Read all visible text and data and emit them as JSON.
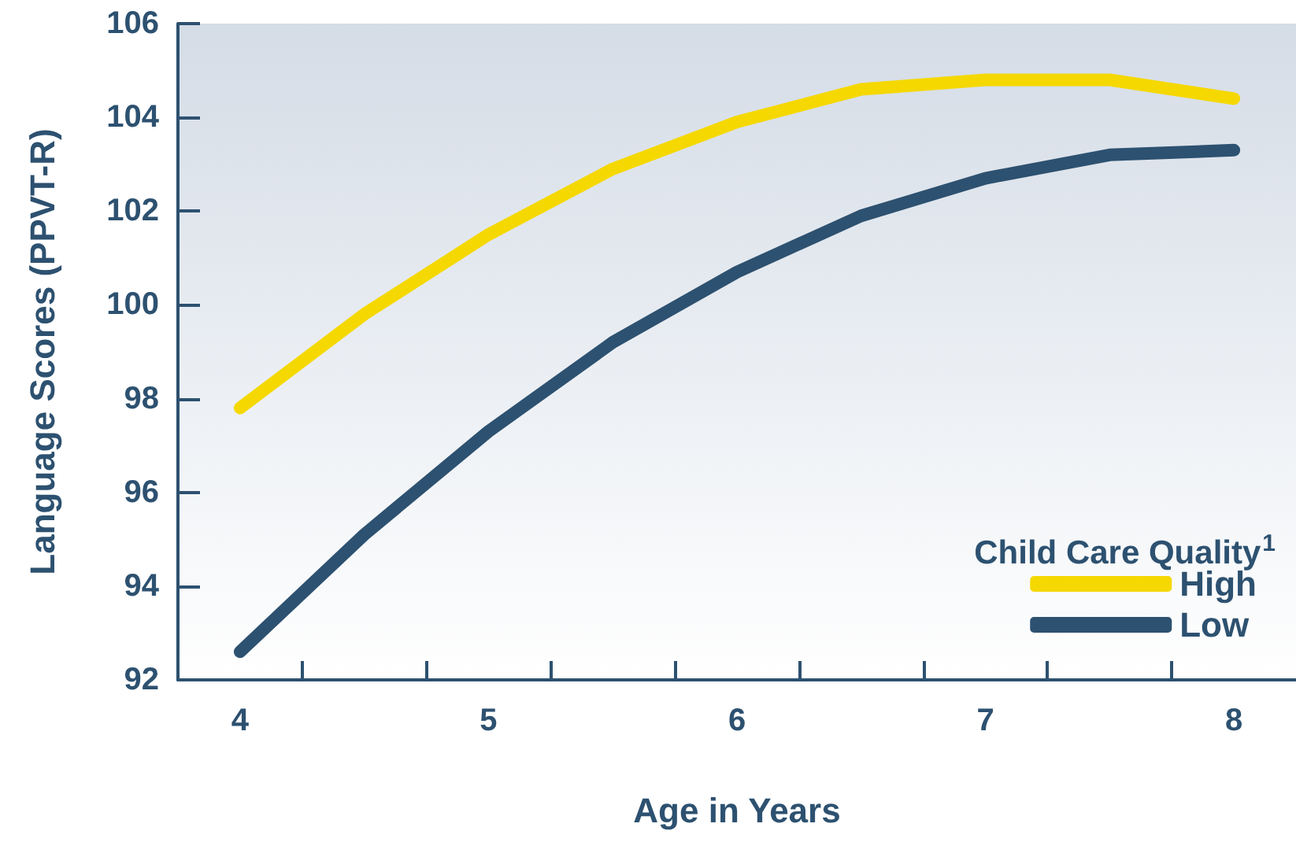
{
  "chart_data": {
    "type": "line",
    "xlabel": "Age in Years",
    "ylabel": "Language Scores (PPVT-R)",
    "legend_title": "Child Care Quality$^{1}$",
    "legend": "bottom right",
    "grid": false,
    "line_style": "solid",
    "x": [
      4,
      4.5,
      5,
      5.5,
      6,
      6.5,
      7,
      7.5,
      8
    ],
    "xlim": [
      3.75,
      8.25
    ],
    "xticks": [
      4,
      5,
      6,
      7,
      8,
      {
        "value": 4.25,
        "label": null
      },
      {
        "value": 4.75,
        "label": null
      },
      {
        "value": 5.25,
        "label": null
      },
      {
        "value": 5.75,
        "label": null
      },
      {
        "value": 6.25,
        "label": null
      },
      {
        "value": 6.75,
        "label": null
      },
      {
        "value": 7.25,
        "label": null
      },
      {
        "value": 7.75,
        "label": null
      }
    ],
    "ylim": [
      92,
      106
    ],
    "yticks": [
      92,
      94,
      96,
      98,
      100,
      102,
      104,
      106
    ],
    "series": [
      {
        "name": "High",
        "color": "#f5d800",
        "values": [
          97.8,
          99.8,
          101.5,
          102.9,
          103.9,
          104.6,
          104.8,
          104.8,
          104.4
        ]
      },
      {
        "name": "Low",
        "color": "#2d5170",
        "values": [
          92.6,
          95.1,
          97.3,
          99.2,
          100.7,
          101.9,
          102.7,
          103.2,
          103.3
        ]
      }
    ]
  }
}
